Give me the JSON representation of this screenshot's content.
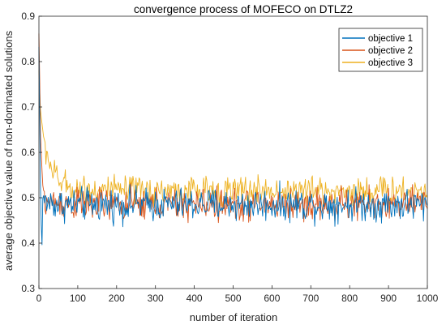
{
  "chart_data": {
    "type": "line",
    "title": "convergence process of MOFECO on DTLZ2",
    "xlabel": "number of iteration",
    "ylabel": "average objective value of non-dominated solutions",
    "xlim": [
      0,
      1000
    ],
    "ylim": [
      0.3,
      0.9
    ],
    "xticks": [
      "0",
      "100",
      "200",
      "300",
      "400",
      "500",
      "600",
      "700",
      "800",
      "900",
      "1000"
    ],
    "yticks": [
      "0.3",
      "0.4",
      "0.5",
      "0.6",
      "0.7",
      "0.8",
      "0.9"
    ],
    "grid": false,
    "legend_position": "top-right",
    "series": [
      {
        "name": "objective 1",
        "color": "#0072BD",
        "x": [
          0,
          3,
          5,
          8,
          10,
          15,
          20,
          30,
          50,
          100,
          200,
          300,
          400,
          500,
          600,
          700,
          800,
          900,
          1000
        ],
        "values": [
          0.83,
          0.62,
          0.45,
          0.4,
          0.5,
          0.49,
          0.49,
          0.49,
          0.485,
          0.485,
          0.485,
          0.485,
          0.485,
          0.485,
          0.485,
          0.485,
          0.485,
          0.485,
          0.485
        ],
        "noise": 0.018
      },
      {
        "name": "objective 2",
        "color": "#D95319",
        "x": [
          0,
          2,
          5,
          10,
          15,
          20,
          30,
          50,
          100,
          200,
          300,
          400,
          500,
          600,
          700,
          800,
          900,
          1000
        ],
        "values": [
          0.86,
          0.75,
          0.6,
          0.53,
          0.5,
          0.49,
          0.49,
          0.49,
          0.485,
          0.485,
          0.485,
          0.485,
          0.485,
          0.485,
          0.485,
          0.485,
          0.485,
          0.485
        ],
        "noise": 0.018
      },
      {
        "name": "objective 3",
        "color": "#EDB120",
        "x": [
          0,
          5,
          10,
          20,
          30,
          40,
          50,
          70,
          100,
          150,
          200,
          300,
          400,
          500,
          600,
          700,
          800,
          900,
          1000
        ],
        "values": [
          0.78,
          0.68,
          0.64,
          0.6,
          0.57,
          0.55,
          0.54,
          0.525,
          0.52,
          0.518,
          0.515,
          0.515,
          0.515,
          0.515,
          0.515,
          0.515,
          0.515,
          0.515,
          0.515
        ],
        "noise": 0.016
      }
    ]
  }
}
